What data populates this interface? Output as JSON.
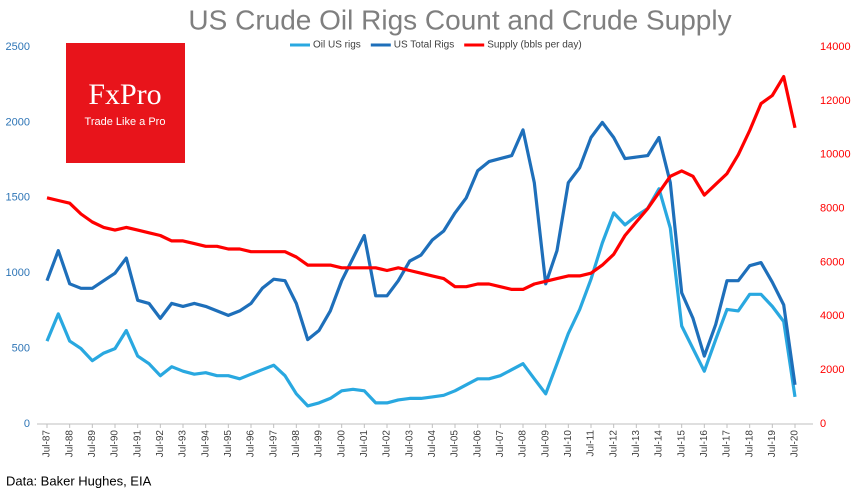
{
  "chart_data": {
    "type": "line",
    "title": "US Crude Oil Rigs Count and Crude Supply",
    "source": "Data: Baker Hughes, EIA",
    "logo": {
      "name": "FxPro",
      "tagline": "Trade Like a Pro"
    },
    "grid": false,
    "categories": [
      "Jul-87",
      null,
      "Jul-88",
      null,
      "Jul-89",
      null,
      "Jul-90",
      null,
      "Jul-91",
      null,
      "Jul-92",
      null,
      "Jul-93",
      null,
      "Jul-94",
      null,
      "Jul-95",
      null,
      "Jul-96",
      null,
      "Jul-97",
      null,
      "Jul-98",
      null,
      "Jul-99",
      null,
      "Jul-00",
      null,
      "Jul-01",
      null,
      "Jul-02",
      null,
      "Jul-03",
      null,
      "Jul-04",
      null,
      "Jul-05",
      null,
      "Jul-06",
      null,
      "Jul-07",
      null,
      "Jul-08",
      null,
      "Jul-09",
      null,
      "Jul-10",
      null,
      "Jul-11",
      null,
      "Jul-12",
      null,
      "Jul-13",
      null,
      "Jul-14",
      null,
      "Jul-15",
      null,
      "Jul-16",
      null,
      "Jul-17",
      null,
      "Jul-18",
      null,
      "Jul-19",
      null,
      "Jul-20"
    ],
    "ylim": [
      0,
      2500
    ],
    "yticks": [
      0,
      500,
      1000,
      1500,
      2000,
      2500
    ],
    "y2lim": [
      0,
      14000
    ],
    "y2ticks": [
      0,
      2000,
      4000,
      6000,
      8000,
      10000,
      12000,
      14000
    ],
    "series": [
      {
        "name": "Oil US rigs",
        "color": "#29a8e0",
        "values": [
          550,
          730,
          550,
          500,
          420,
          470,
          500,
          620,
          450,
          400,
          320,
          380,
          350,
          330,
          340,
          320,
          320,
          300,
          330,
          360,
          390,
          320,
          200,
          120,
          140,
          170,
          220,
          230,
          220,
          140,
          140,
          160,
          170,
          170,
          180,
          190,
          220,
          260,
          300,
          300,
          320,
          360,
          400,
          300,
          200,
          400,
          600,
          760,
          960,
          1200,
          1400,
          1320,
          1380,
          1430,
          1560,
          1300,
          650,
          500,
          350,
          560,
          760,
          750,
          860,
          860,
          780,
          680,
          180
        ]
      },
      {
        "name": "US Total Rigs",
        "color": "#1e6fba",
        "values": [
          950,
          1150,
          930,
          900,
          900,
          950,
          1000,
          1100,
          820,
          800,
          700,
          800,
          780,
          800,
          780,
          750,
          720,
          750,
          800,
          900,
          960,
          950,
          800,
          560,
          620,
          750,
          950,
          1100,
          1250,
          850,
          850,
          950,
          1080,
          1120,
          1220,
          1280,
          1400,
          1500,
          1680,
          1740,
          1760,
          1780,
          1950,
          1600,
          930,
          1150,
          1600,
          1700,
          1900,
          2000,
          1900,
          1760,
          1770,
          1780,
          1900,
          1600,
          870,
          700,
          450,
          660,
          950,
          950,
          1050,
          1070,
          940,
          790,
          260
        ]
      },
      {
        "name": "Supply (bbls per day)",
        "color": "#ff0000",
        "axis": "y2",
        "values": [
          8400,
          8300,
          8200,
          7800,
          7500,
          7300,
          7200,
          7300,
          7200,
          7100,
          7000,
          6800,
          6800,
          6700,
          6600,
          6600,
          6500,
          6500,
          6400,
          6400,
          6400,
          6400,
          6200,
          5900,
          5900,
          5900,
          5800,
          5800,
          5800,
          5800,
          5700,
          5800,
          5700,
          5600,
          5500,
          5400,
          5100,
          5100,
          5200,
          5200,
          5100,
          5000,
          5000,
          5200,
          5300,
          5400,
          5500,
          5500,
          5600,
          5900,
          6300,
          7000,
          7500,
          8000,
          8600,
          9200,
          9400,
          9200,
          8500,
          8900,
          9300,
          10000,
          10900,
          11900,
          12200,
          12900,
          11000
        ]
      }
    ]
  }
}
